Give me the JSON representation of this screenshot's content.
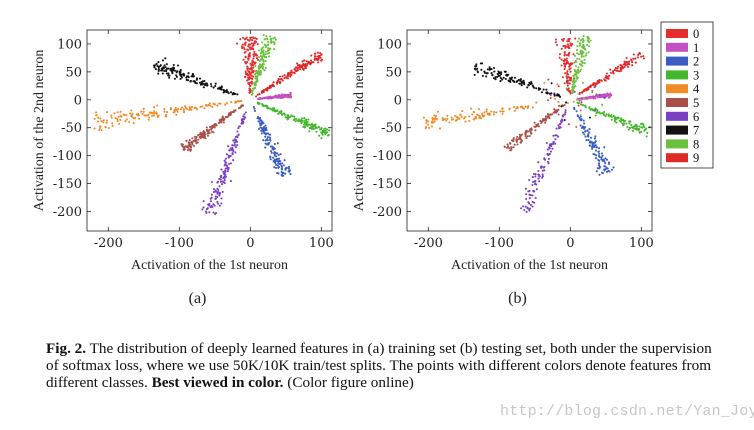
{
  "chart_data": [
    {
      "id": "a",
      "type": "scatter",
      "subfigure_label": "(a)",
      "title": "",
      "xlabel": "Activation of the 1st neuron",
      "ylabel": "Activation of the 2nd neuron",
      "xlim": [
        -230,
        115
      ],
      "ylim": [
        -235,
        125
      ],
      "xticks": [
        -200,
        -100,
        0,
        100
      ],
      "yticks": [
        100,
        50,
        0,
        -50,
        -100,
        -150,
        -200
      ],
      "grid": false,
      "clusters": [
        {
          "class": "0",
          "tip": [
            0,
            80
          ],
          "range": [
            8,
            112
          ],
          "spread": 0.17
        },
        {
          "class": "1",
          "tip": [
            55,
            8
          ],
          "range": [
            10,
            58
          ],
          "spread": 0.07
        },
        {
          "class": "2",
          "tip": [
            48,
            -133
          ],
          "range": [
            10,
            145
          ],
          "spread": 0.09
        },
        {
          "class": "3",
          "tip": [
            110,
            -60
          ],
          "range": [
            10,
            128
          ],
          "spread": 0.08
        },
        {
          "class": "4",
          "tip": [
            -220,
            -40
          ],
          "range": [
            12,
            225
          ],
          "spread": 0.08
        },
        {
          "class": "5",
          "tip": [
            -95,
            -88
          ],
          "range": [
            10,
            130
          ],
          "spread": 0.07
        },
        {
          "class": "6",
          "tip": [
            -58,
            -205
          ],
          "range": [
            15,
            212
          ],
          "spread": 0.065
        },
        {
          "class": "7",
          "tip": [
            -135,
            62
          ],
          "range": [
            12,
            150
          ],
          "spread": 0.09
        },
        {
          "class": "8",
          "tip": [
            28,
            115
          ],
          "range": [
            8,
            118
          ],
          "spread": 0.09
        },
        {
          "class": "9",
          "tip": [
            100,
            82
          ],
          "range": [
            10,
            130
          ],
          "spread": 0.07
        }
      ]
    },
    {
      "id": "b",
      "type": "scatter",
      "subfigure_label": "(b)",
      "title": "",
      "xlabel": "Activation of the 1st neuron",
      "ylabel": "Activation of the 2nd neuron",
      "xlim": [
        -230,
        115
      ],
      "ylim": [
        -235,
        125
      ],
      "xticks": [
        -200,
        -100,
        0,
        100
      ],
      "yticks": [
        100,
        50,
        0,
        -50,
        -100,
        -150,
        -200
      ],
      "grid": false,
      "legend": {
        "placement": "right",
        "entries": [
          {
            "label": "0",
            "color": "#e82c2c"
          },
          {
            "label": "1",
            "color": "#c44fc4"
          },
          {
            "label": "2",
            "color": "#3a5bc4"
          },
          {
            "label": "3",
            "color": "#44b82c"
          },
          {
            "label": "4",
            "color": "#f08c28"
          },
          {
            "label": "5",
            "color": "#a85048"
          },
          {
            "label": "6",
            "color": "#7a3fc4"
          },
          {
            "label": "7",
            "color": "#111111"
          },
          {
            "label": "8",
            "color": "#6ac23c"
          },
          {
            "label": "9",
            "color": "#e02828"
          }
        ]
      },
      "clusters": [
        {
          "class": "0",
          "tip": [
            -5,
            78
          ],
          "range": [
            8,
            110
          ],
          "spread": 0.14
        },
        {
          "class": "1",
          "tip": [
            55,
            8
          ],
          "range": [
            10,
            58
          ],
          "spread": 0.07
        },
        {
          "class": "2",
          "tip": [
            50,
            -125
          ],
          "range": [
            10,
            140
          ],
          "spread": 0.1
        },
        {
          "class": "3",
          "tip": [
            110,
            -58
          ],
          "range": [
            10,
            128
          ],
          "spread": 0.08
        },
        {
          "class": "4",
          "tip": [
            -205,
            -42
          ],
          "range": [
            12,
            210
          ],
          "spread": 0.07
        },
        {
          "class": "5",
          "tip": [
            -90,
            -88
          ],
          "range": [
            10,
            125
          ],
          "spread": 0.07
        },
        {
          "class": "6",
          "tip": [
            -65,
            -198
          ],
          "range": [
            15,
            210
          ],
          "spread": 0.06
        },
        {
          "class": "7",
          "tip": [
            -135,
            58
          ],
          "range": [
            12,
            148
          ],
          "spread": 0.09
        },
        {
          "class": "8",
          "tip": [
            22,
            115
          ],
          "range": [
            8,
            118
          ],
          "spread": 0.09
        },
        {
          "class": "9",
          "tip": [
            100,
            82
          ],
          "range": [
            10,
            130
          ],
          "spread": 0.07
        }
      ]
    }
  ],
  "caption": {
    "fig_label": "Fig. 2.",
    "text": " The distribution of deeply learned features in (a) training set (b) testing set, both under the supervision of softmax loss, where we use 50K/10K train/test splits. The points with different colors denote features from different classes. ",
    "emphasis": "Best viewed in color.",
    "suffix": " (Color figure online)"
  },
  "watermark": "http://blog.csdn.net/Yan_Joy"
}
